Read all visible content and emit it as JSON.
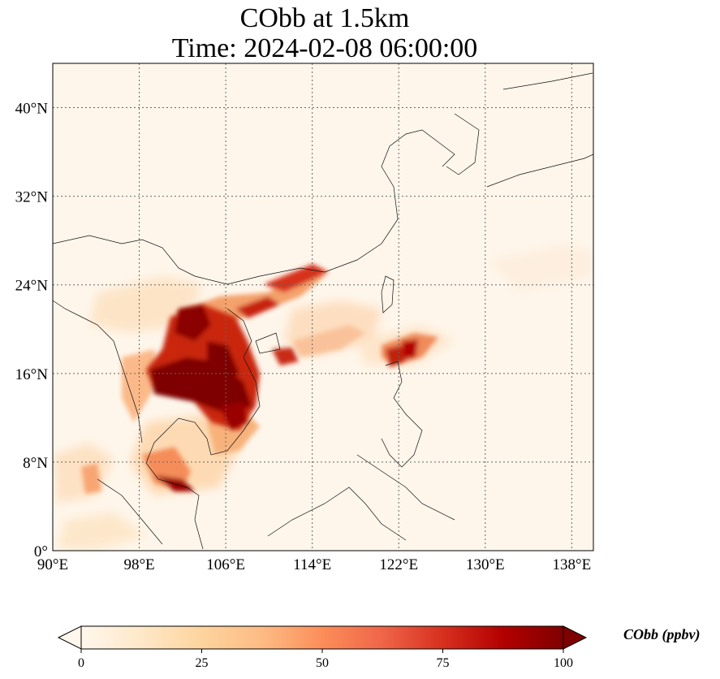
{
  "title": {
    "line1": "CObb at 1.5km",
    "line2": "Time: 2024-02-08 06:00:00"
  },
  "map": {
    "lon_range": [
      90,
      140
    ],
    "lat_range": [
      0,
      44
    ],
    "lon_ticks": [
      {
        "value": 90,
        "label": "90°E"
      },
      {
        "value": 98,
        "label": "98°E"
      },
      {
        "value": 106,
        "label": "106°E"
      },
      {
        "value": 114,
        "label": "114°E"
      },
      {
        "value": 122,
        "label": "122°E"
      },
      {
        "value": 130,
        "label": "130°E"
      },
      {
        "value": 138,
        "label": "138°E"
      }
    ],
    "lat_ticks": [
      {
        "value": 0,
        "label": "0°"
      },
      {
        "value": 8,
        "label": "8°N"
      },
      {
        "value": 16,
        "label": "16°N"
      },
      {
        "value": 24,
        "label": "24°N"
      },
      {
        "value": 32,
        "label": "32°N"
      },
      {
        "value": 40,
        "label": "40°N"
      }
    ],
    "gridlines": true,
    "coastlines": true,
    "colormap": "OrRd",
    "background_color": "#fef6eb"
  },
  "colorbar": {
    "label": "CObb (ppbv)",
    "ticks": [
      {
        "value": 0,
        "label": "0"
      },
      {
        "value": 25,
        "label": "25"
      },
      {
        "value": 50,
        "label": "50"
      },
      {
        "value": 75,
        "label": "75"
      },
      {
        "value": 100,
        "label": "100"
      }
    ],
    "range": [
      0,
      100
    ],
    "extend": "both",
    "colors": [
      "#fff7ec",
      "#fee8c8",
      "#fdd49e",
      "#fdbb84",
      "#fc8d59",
      "#ef6548",
      "#d7301f",
      "#b30000",
      "#7f0000"
    ]
  }
}
